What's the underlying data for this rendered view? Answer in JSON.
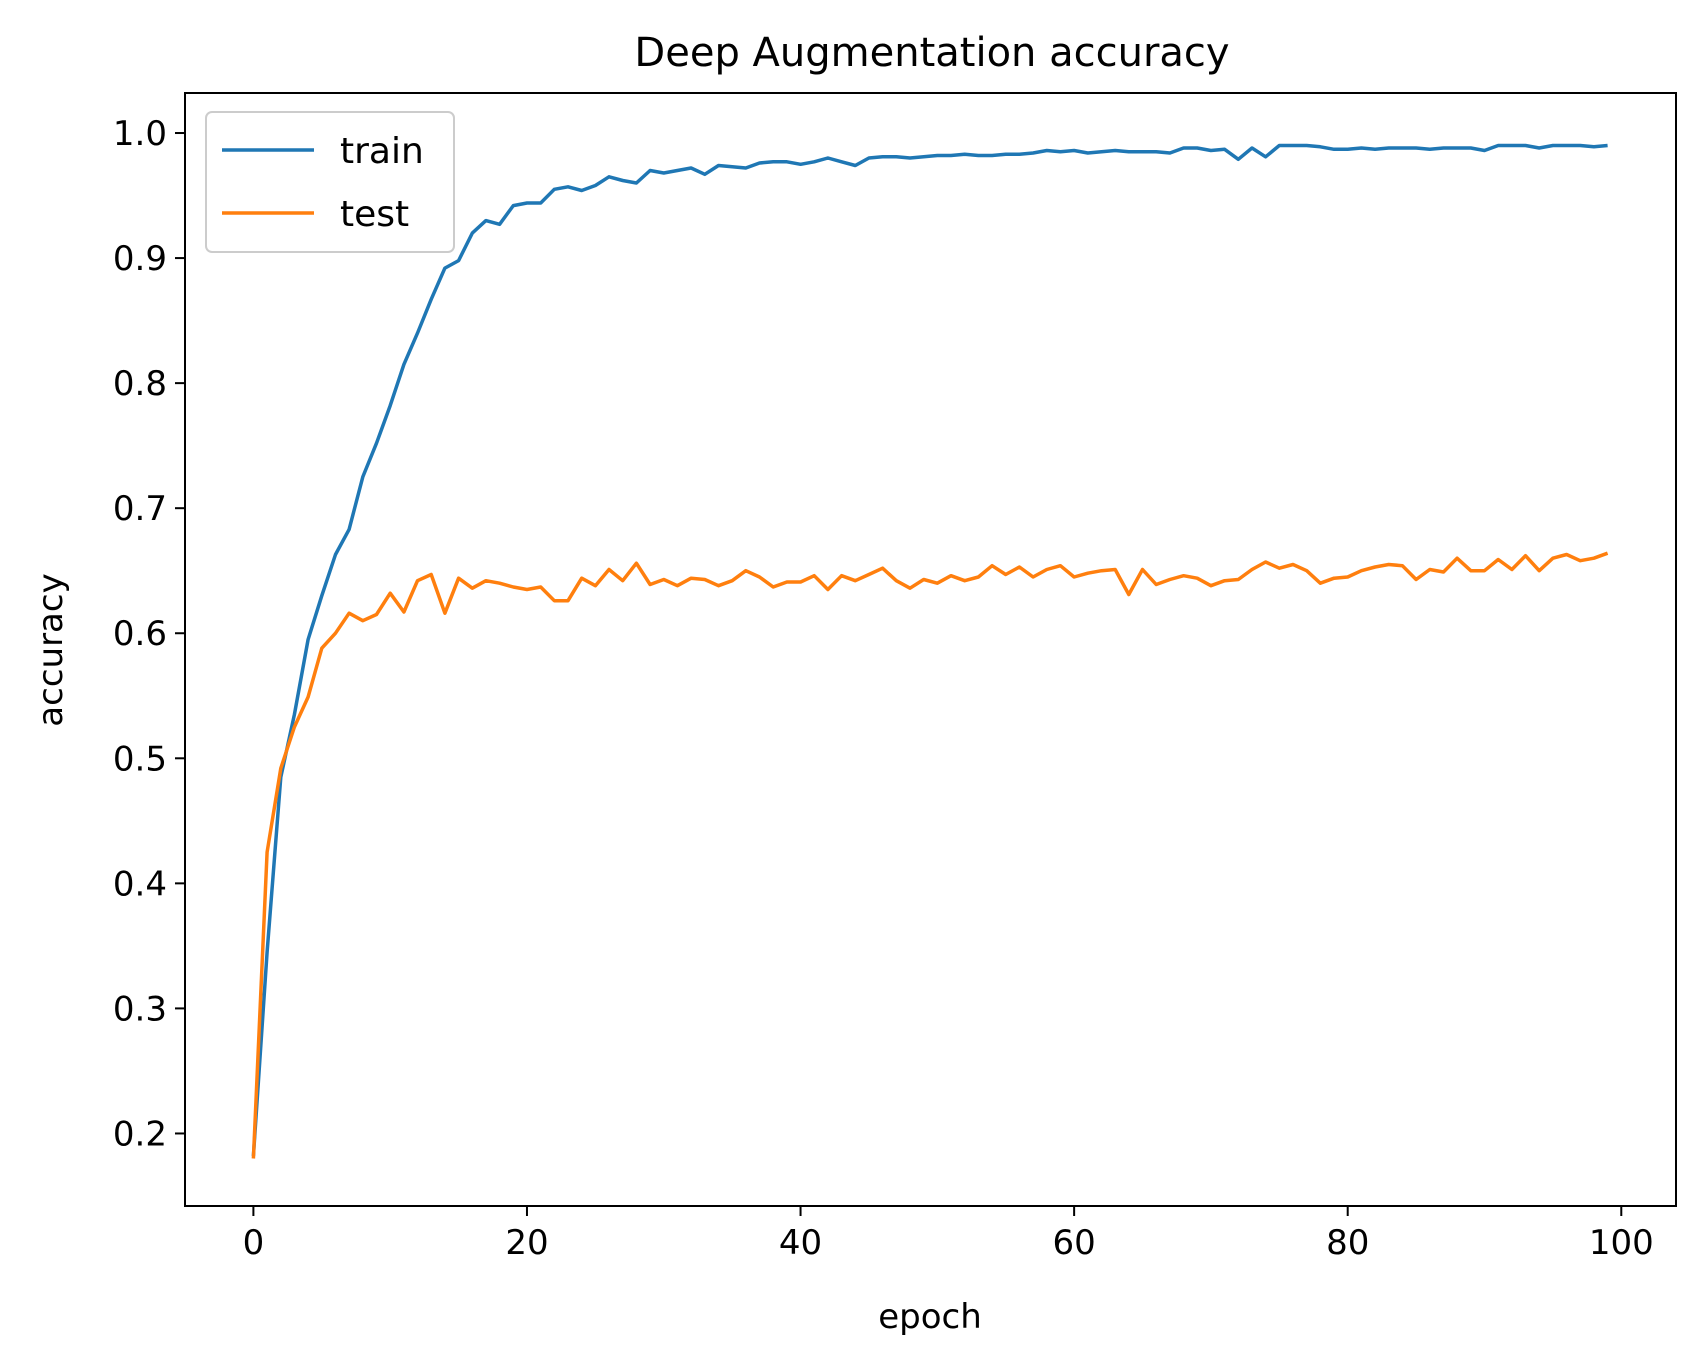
{
  "chart_data": {
    "type": "line",
    "title": "Deep Augmentation accuracy",
    "xlabel": "epoch",
    "ylabel": "accuracy",
    "xlim": [
      -5,
      104
    ],
    "ylim": [
      0.142,
      1.032
    ],
    "xticks": [
      0,
      20,
      40,
      60,
      80,
      100
    ],
    "yticks": [
      0.2,
      0.3,
      0.4,
      0.5,
      0.6,
      0.7,
      0.8,
      0.9,
      1.0
    ],
    "grid": false,
    "legend_position": "top-left",
    "x": [
      0,
      1,
      2,
      3,
      4,
      5,
      6,
      7,
      8,
      9,
      10,
      11,
      12,
      13,
      14,
      15,
      16,
      17,
      18,
      19,
      20,
      21,
      22,
      23,
      24,
      25,
      26,
      27,
      28,
      29,
      30,
      31,
      32,
      33,
      34,
      35,
      36,
      37,
      38,
      39,
      40,
      41,
      42,
      43,
      44,
      45,
      46,
      47,
      48,
      49,
      50,
      51,
      52,
      53,
      54,
      55,
      56,
      57,
      58,
      59,
      60,
      61,
      62,
      63,
      64,
      65,
      66,
      67,
      68,
      69,
      70,
      71,
      72,
      73,
      74,
      75,
      76,
      77,
      78,
      79,
      80,
      81,
      82,
      83,
      84,
      85,
      86,
      87,
      88,
      89,
      90,
      91,
      92,
      93,
      94,
      95,
      96,
      97,
      98,
      99
    ],
    "series": [
      {
        "name": "train",
        "color": "#1f77b4",
        "values": [
          0.182,
          0.345,
          0.485,
          0.535,
          0.595,
          0.63,
          0.663,
          0.683,
          0.725,
          0.752,
          0.782,
          0.815,
          0.84,
          0.867,
          0.892,
          0.898,
          0.92,
          0.93,
          0.927,
          0.942,
          0.944,
          0.944,
          0.955,
          0.957,
          0.954,
          0.958,
          0.965,
          0.962,
          0.96,
          0.97,
          0.968,
          0.97,
          0.972,
          0.967,
          0.974,
          0.973,
          0.972,
          0.976,
          0.977,
          0.977,
          0.975,
          0.977,
          0.98,
          0.977,
          0.974,
          0.98,
          0.981,
          0.981,
          0.98,
          0.981,
          0.982,
          0.982,
          0.983,
          0.982,
          0.982,
          0.983,
          0.983,
          0.984,
          0.986,
          0.985,
          0.986,
          0.984,
          0.985,
          0.986,
          0.985,
          0.985,
          0.985,
          0.984,
          0.988,
          0.988,
          0.986,
          0.987,
          0.979,
          0.988,
          0.981,
          0.99,
          0.99,
          0.99,
          0.989,
          0.987,
          0.987,
          0.988,
          0.987,
          0.988,
          0.988,
          0.988,
          0.987,
          0.988,
          0.988,
          0.988,
          0.986,
          0.99,
          0.99,
          0.99,
          0.988,
          0.99,
          0.99,
          0.99,
          0.989,
          0.99
        ]
      },
      {
        "name": "test",
        "color": "#ff7f0e",
        "values": [
          0.18,
          0.425,
          0.492,
          0.525,
          0.549,
          0.588,
          0.6,
          0.616,
          0.61,
          0.615,
          0.632,
          0.617,
          0.642,
          0.647,
          0.616,
          0.644,
          0.636,
          0.642,
          0.64,
          0.637,
          0.635,
          0.637,
          0.626,
          0.626,
          0.644,
          0.638,
          0.651,
          0.642,
          0.656,
          0.639,
          0.643,
          0.638,
          0.644,
          0.643,
          0.638,
          0.642,
          0.65,
          0.645,
          0.637,
          0.641,
          0.641,
          0.646,
          0.635,
          0.646,
          0.642,
          0.647,
          0.652,
          0.642,
          0.636,
          0.643,
          0.64,
          0.646,
          0.642,
          0.645,
          0.654,
          0.647,
          0.653,
          0.645,
          0.651,
          0.654,
          0.645,
          0.648,
          0.65,
          0.651,
          0.631,
          0.651,
          0.639,
          0.643,
          0.646,
          0.644,
          0.638,
          0.642,
          0.643,
          0.651,
          0.657,
          0.652,
          0.655,
          0.65,
          0.64,
          0.644,
          0.645,
          0.65,
          0.653,
          0.655,
          0.654,
          0.643,
          0.651,
          0.649,
          0.66,
          0.65,
          0.65,
          0.659,
          0.651,
          0.662,
          0.65,
          0.66,
          0.663,
          0.658,
          0.66,
          0.664
        ]
      }
    ]
  }
}
